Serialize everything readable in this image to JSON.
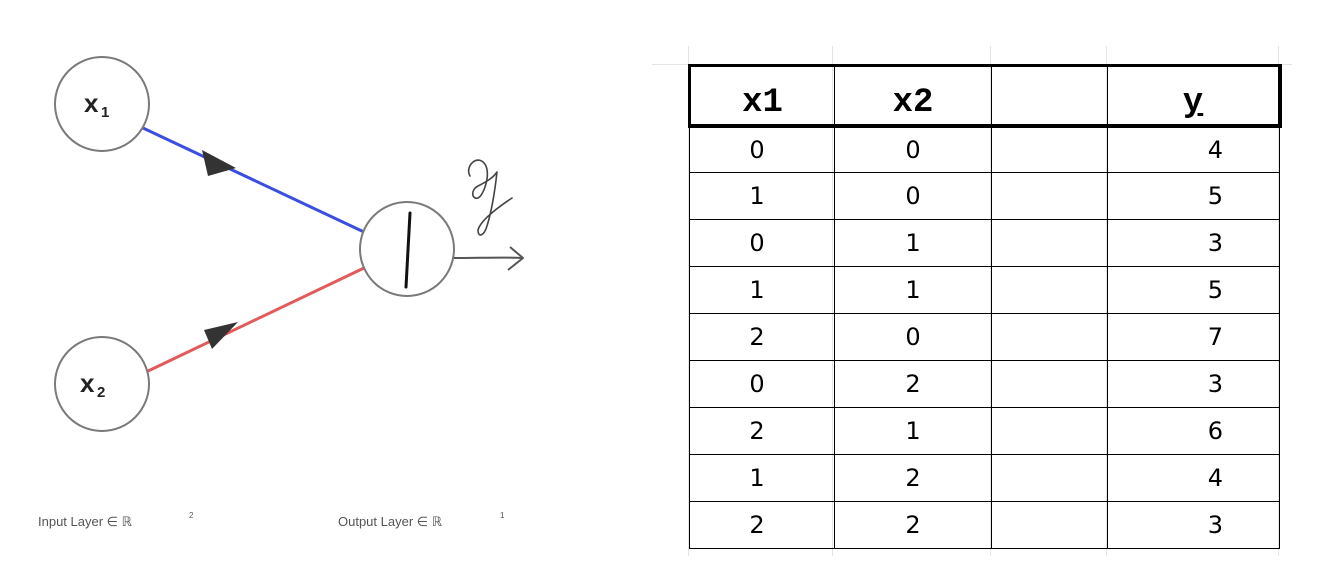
{
  "diagram": {
    "nodes": [
      {
        "id": "x1",
        "letter": "x",
        "sub": "1"
      },
      {
        "id": "x2",
        "letter": "x",
        "sub": "2"
      },
      {
        "id": "output",
        "symbol": "|"
      }
    ],
    "output_label": "y",
    "input_layer_label": "Input Layer ∈ ℝ",
    "input_layer_sup": "2",
    "output_layer_label": "Output Layer ∈ ℝ",
    "output_layer_sup": "1",
    "colors": {
      "edge_x1": "#3a4ee0",
      "edge_x2": "#e25a5a",
      "arrow": "#333333"
    }
  },
  "table": {
    "headers": [
      "x1",
      "x2",
      "",
      "y"
    ],
    "rows": [
      [
        "0",
        "0",
        "",
        "4"
      ],
      [
        "1",
        "0",
        "",
        "5"
      ],
      [
        "0",
        "1",
        "",
        "3"
      ],
      [
        "1",
        "1",
        "",
        "5"
      ],
      [
        "2",
        "0",
        "",
        "7"
      ],
      [
        "0",
        "2",
        "",
        "3"
      ],
      [
        "2",
        "1",
        "",
        "6"
      ],
      [
        "1",
        "2",
        "",
        "4"
      ],
      [
        "2",
        "2",
        "",
        "3"
      ]
    ]
  }
}
